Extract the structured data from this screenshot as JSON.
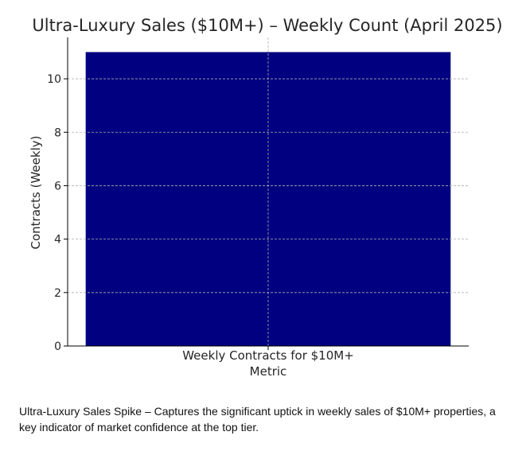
{
  "chart_data": {
    "type": "bar",
    "title": "Ultra-Luxury Sales ($10M+) – Weekly Count (April 2025)",
    "xlabel": "Metric",
    "ylabel": "Contracts (Weekly)",
    "categories": [
      "Weekly Contracts for $10M+"
    ],
    "values": [
      11
    ],
    "ylim": [
      0,
      11.55
    ],
    "yticks": [
      0,
      2,
      4,
      6,
      8,
      10
    ],
    "grid": true,
    "bar_color": "#000080"
  },
  "caption": "Ultra-Luxury Sales Spike – Captures the significant uptick in weekly sales of $10M+ properties, a key indicator of market confidence at the top tier."
}
